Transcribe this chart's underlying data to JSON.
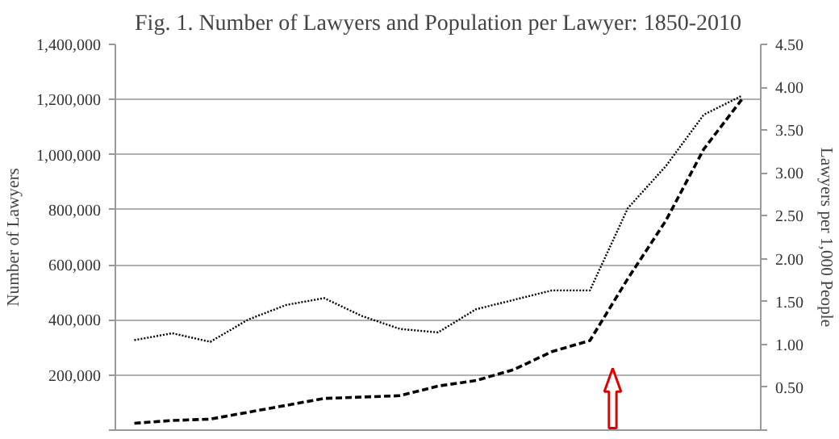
{
  "chart_data": {
    "type": "line",
    "title": "Fig. 1. Number of Lawyers and Population per Lawyer: 1850-2010",
    "ylabel": "Number of Lawyers",
    "y2label": "Lawyers per 1,000 People",
    "categories": [
      null,
      null,
      null,
      null,
      null,
      null,
      null,
      null,
      null,
      null,
      null,
      null,
      null,
      null,
      null,
      null,
      null
    ],
    "series": [
      {
        "color": "#000000",
        "line_style": "dashed",
        "values": [
          25000,
          35000,
          40000,
          65000,
          90000,
          115000,
          120000,
          125000,
          160000,
          180000,
          220000,
          285000,
          325000,
          550000,
          760000,
          1020000,
          1200000
        ]
      },
      {
        "color": "#000000",
        "line_style": "dotted",
        "axis": "y2",
        "values": [
          1.05,
          1.13,
          1.03,
          1.29,
          1.46,
          1.54,
          1.33,
          1.18,
          1.14,
          1.41,
          1.52,
          1.63,
          1.63,
          2.59,
          3.08,
          3.68,
          3.9
        ]
      }
    ],
    "ylim": [
      0,
      1400000
    ],
    "yticks": [
      {
        "value": 0,
        "label": null
      },
      {
        "value": 200000,
        "label": "200,000"
      },
      {
        "value": 400000,
        "label": "400,000"
      },
      {
        "value": 600000,
        "label": "600,000"
      },
      {
        "value": 800000,
        "label": "800,000"
      },
      {
        "value": 1000000,
        "label": "1,000,000"
      },
      {
        "value": 1200000,
        "label": "1,200,000"
      },
      {
        "value": 1400000,
        "label": "1,400,000"
      }
    ],
    "y2lim": [
      0,
      4.5
    ],
    "y2ticks": [
      {
        "value": 0,
        "label": null
      },
      {
        "value": 0.5,
        "label": "0.50"
      },
      {
        "value": 1,
        "label": "1.00"
      },
      {
        "value": 1.5,
        "label": "1.50"
      },
      {
        "value": 2,
        "label": "2.00"
      },
      {
        "value": 2.5,
        "label": "2.50"
      },
      {
        "value": 3,
        "label": "3.00"
      },
      {
        "value": 3.5,
        "label": "3.50"
      },
      {
        "value": 4,
        "label": "4.00"
      },
      {
        "value": 4.5,
        "label": "4.50"
      }
    ],
    "tick_labels": "y",
    "grid": "y"
  }
}
